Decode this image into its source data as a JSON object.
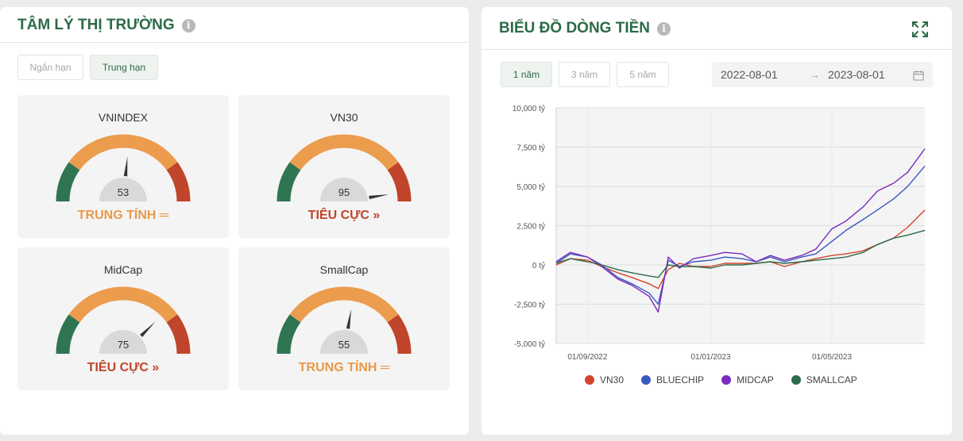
{
  "sentiment": {
    "title": "TÂM LÝ THỊ TRƯỜNG",
    "tabs": [
      {
        "label": "Ngắn hạn",
        "active": false
      },
      {
        "label": "Trung hạn",
        "active": true
      }
    ],
    "gauges": [
      {
        "name": "VNINDEX",
        "value": 53,
        "status": "TRUNG TÍNH",
        "status_icon": "equals-icon",
        "tone": "neutral"
      },
      {
        "name": "VN30",
        "value": 95,
        "status": "TIÊU CỰC",
        "status_icon": "double-chevron-down-icon",
        "tone": "negative"
      },
      {
        "name": "MidCap",
        "value": 75,
        "status": "TIÊU CỰC",
        "status_icon": "double-chevron-down-icon",
        "tone": "negative"
      },
      {
        "name": "SmallCap",
        "value": 55,
        "status": "TRUNG TÍNH",
        "status_icon": "equals-icon",
        "tone": "neutral"
      }
    ],
    "gauge_colors": {
      "low": "#2f7552",
      "mid": "#ec9c4d",
      "high": "#c1452a",
      "hub": "#d9d9d9",
      "needle": "#333333"
    }
  },
  "cashflow": {
    "title": "BIỂU ĐỒ DÒNG TIỀN",
    "period_tabs": [
      {
        "label": "1 năm",
        "active": true
      },
      {
        "label": "3 năm",
        "active": false
      },
      {
        "label": "5 năm",
        "active": false
      }
    ],
    "date_from": "2022-08-01",
    "date_to": "2023-08-01",
    "date_arrow": "→",
    "icons": {
      "info": "info-icon",
      "expand": "expand-icon",
      "calendar": "calendar-icon"
    }
  },
  "chart_data": {
    "type": "line",
    "title": "",
    "xlabel": "",
    "ylabel": "",
    "ylim": [
      -5000,
      10000
    ],
    "y_ticks": [
      -5000,
      -2500,
      0,
      2500,
      5000,
      7500,
      10000
    ],
    "y_tick_labels": [
      "-5,000 tỷ",
      "-2,500 tỷ",
      "0 tỷ",
      "2,500 tỷ",
      "5,000 tỷ",
      "7,500 tỷ",
      "10,000 tỷ"
    ],
    "x_range": [
      "2022-08-01",
      "2023-08-01"
    ],
    "x_ticks": [
      "2022-09-01",
      "2023-01-01",
      "2023-05-01"
    ],
    "x_tick_labels": [
      "01/09/2022",
      "01/01/2023",
      "01/05/2023"
    ],
    "grid": true,
    "legend_position": "bottom",
    "x": [
      "2022-08-01",
      "2022-08-15",
      "2022-09-01",
      "2022-09-15",
      "2022-10-01",
      "2022-10-15",
      "2022-11-01",
      "2022-11-10",
      "2022-11-20",
      "2022-12-01",
      "2022-12-15",
      "2023-01-01",
      "2023-01-15",
      "2023-02-01",
      "2023-02-15",
      "2023-03-01",
      "2023-03-15",
      "2023-04-01",
      "2023-04-15",
      "2023-05-01",
      "2023-05-15",
      "2023-06-01",
      "2023-06-15",
      "2023-07-01",
      "2023-07-15",
      "2023-08-01"
    ],
    "series": [
      {
        "name": "VN30",
        "color": "#d2452d",
        "values": [
          0,
          400,
          300,
          -100,
          -500,
          -800,
          -1200,
          -1500,
          -300,
          100,
          -100,
          -100,
          100,
          100,
          100,
          200,
          -100,
          200,
          400,
          600,
          700,
          900,
          1300,
          1700,
          2400,
          3500
        ]
      },
      {
        "name": "BLUECHIP",
        "color": "#3b58c0",
        "values": [
          100,
          700,
          500,
          0,
          -800,
          -1200,
          -1800,
          -2500,
          300,
          -100,
          200,
          300,
          500,
          400,
          200,
          500,
          200,
          500,
          700,
          1500,
          2200,
          2900,
          3500,
          4200,
          5000,
          6300
        ]
      },
      {
        "name": "MIDCAP",
        "color": "#7a2bbd",
        "values": [
          200,
          800,
          500,
          -100,
          -900,
          -1300,
          -2000,
          -3000,
          500,
          -200,
          400,
          600,
          800,
          700,
          200,
          600,
          300,
          600,
          1000,
          2300,
          2800,
          3700,
          4700,
          5200,
          5900,
          7400
        ]
      },
      {
        "name": "SMALLCAP",
        "color": "#2e6b4b",
        "values": [
          100,
          400,
          200,
          0,
          -300,
          -500,
          -700,
          -800,
          0,
          -100,
          -100,
          -200,
          0,
          0,
          100,
          200,
          100,
          200,
          300,
          400,
          500,
          800,
          1300,
          1700,
          1900,
          2200
        ]
      }
    ]
  }
}
